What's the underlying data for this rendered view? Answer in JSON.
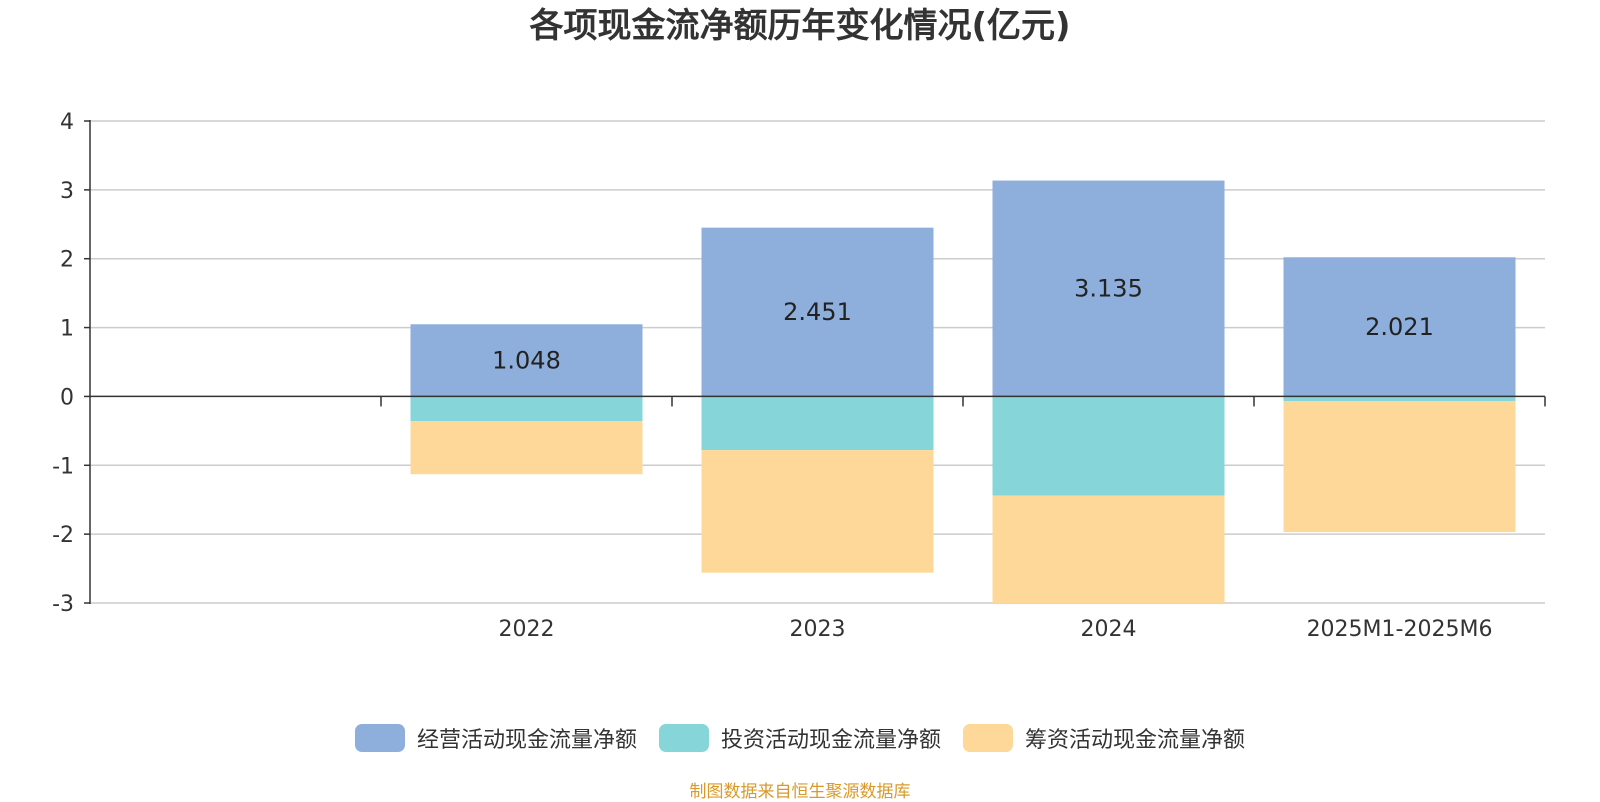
{
  "chart_data": {
    "type": "bar",
    "stacked": true,
    "title": "各项现金流净额历年变化情况(亿元)",
    "categories": [
      "2022",
      "2023",
      "2024",
      "2025M1-2025M6"
    ],
    "series": [
      {
        "name": "经营活动现金流量净额",
        "color": "#8eaedb",
        "values": [
          1.048,
          2.451,
          3.135,
          2.021
        ],
        "labels": [
          "1.048",
          "2.451",
          "3.135",
          "2.021"
        ]
      },
      {
        "name": "投资活动现金流量净额",
        "color": "#86d5d8",
        "values": [
          -0.36,
          -0.78,
          -1.44,
          -0.07
        ]
      },
      {
        "name": "筹资活动现金流量净额",
        "color": "#fdd898",
        "values": [
          -0.77,
          -1.78,
          -1.56,
          -1.9
        ]
      }
    ],
    "ylim": [
      -3,
      4
    ],
    "yticks": [
      "4",
      "3",
      "2",
      "1",
      "0",
      "-1",
      "-2",
      "-3"
    ],
    "ytick_values": [
      4,
      3,
      2,
      1,
      0,
      -1,
      -2,
      -3
    ],
    "grid": true,
    "legend_position": "bottom"
  },
  "source": "制图数据来自恒生聚源数据库"
}
